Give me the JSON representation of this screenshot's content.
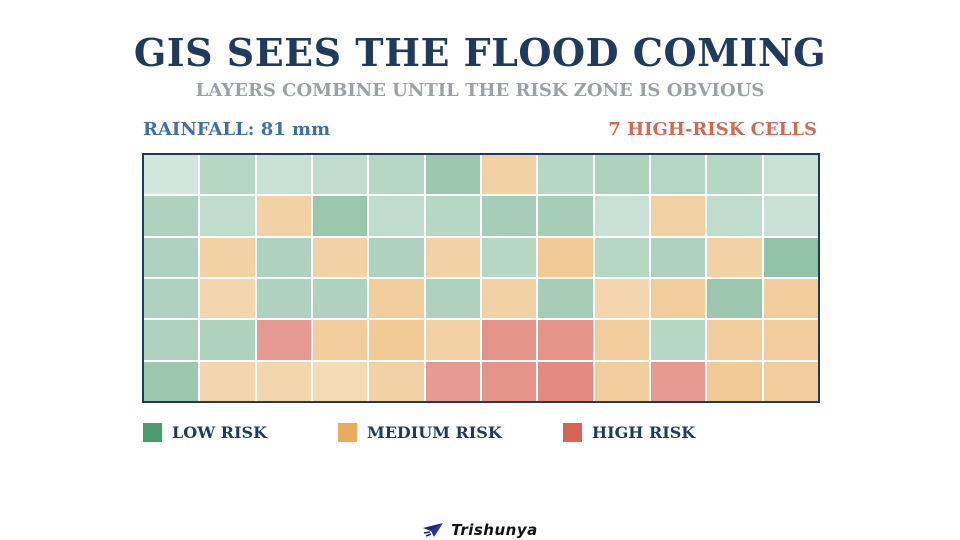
{
  "title": "GIS SEES THE FLOOD COMING",
  "subtitle": "LAYERS COMBINE UNTIL THE RISK ZONE IS OBVIOUS",
  "rainfall": "RAINFALL: 81 mm",
  "high_risk_count": "7 HIGH-RISK CELLS",
  "colors": {
    "low": "#4a9a6e",
    "medium": "#e8ac5c",
    "high": "#d96455"
  },
  "grid": {
    "rows": [
      [
        "low",
        "low",
        "low",
        "low",
        "low",
        "low",
        "medium",
        "low",
        "low",
        "low",
        "low",
        "low"
      ],
      [
        "low",
        "low",
        "medium",
        "low",
        "low",
        "low",
        "low",
        "low",
        "low",
        "medium",
        "low",
        "low"
      ],
      [
        "low",
        "medium",
        "low",
        "medium",
        "low",
        "medium",
        "low",
        "medium",
        "low",
        "low",
        "medium",
        "low"
      ],
      [
        "low",
        "medium",
        "low",
        "low",
        "medium",
        "low",
        "medium",
        "low",
        "medium",
        "medium",
        "low",
        "medium"
      ],
      [
        "low",
        "low",
        "high",
        "medium",
        "medium",
        "medium",
        "high",
        "high",
        "medium",
        "low",
        "medium",
        "medium"
      ],
      [
        "low",
        "medium",
        "medium",
        "medium",
        "medium",
        "high",
        "high",
        "high",
        "medium",
        "high",
        "medium",
        "medium"
      ]
    ],
    "intensity": [
      [
        0.25,
        0.4,
        0.3,
        0.35,
        0.4,
        0.55,
        0.55,
        0.4,
        0.45,
        0.4,
        0.4,
        0.3
      ],
      [
        0.45,
        0.35,
        0.55,
        0.55,
        0.35,
        0.4,
        0.5,
        0.5,
        0.3,
        0.55,
        0.35,
        0.3
      ],
      [
        0.45,
        0.55,
        0.45,
        0.55,
        0.45,
        0.55,
        0.4,
        0.65,
        0.4,
        0.45,
        0.55,
        0.6
      ],
      [
        0.45,
        0.5,
        0.45,
        0.45,
        0.6,
        0.45,
        0.55,
        0.5,
        0.5,
        0.6,
        0.55,
        0.6
      ],
      [
        0.45,
        0.45,
        0.65,
        0.6,
        0.65,
        0.55,
        0.7,
        0.7,
        0.6,
        0.4,
        0.6,
        0.6
      ],
      [
        0.55,
        0.5,
        0.5,
        0.45,
        0.55,
        0.65,
        0.7,
        0.75,
        0.6,
        0.65,
        0.65,
        0.6
      ]
    ]
  },
  "legend": [
    {
      "label": "LOW RISK",
      "level": "low"
    },
    {
      "label": "MEDIUM RISK",
      "level": "medium"
    },
    {
      "label": "HIGH RISK",
      "level": "high"
    }
  ],
  "brand": {
    "name": "Trishunya",
    "icon": "paper-plane-icon"
  }
}
